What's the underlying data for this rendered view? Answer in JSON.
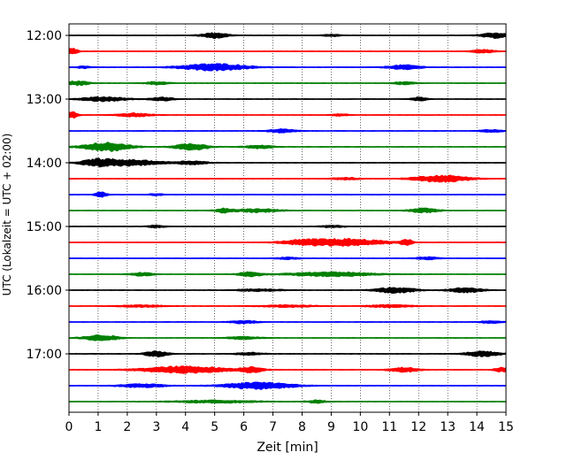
{
  "chart_data": {
    "type": "line",
    "title": "",
    "xlabel": "Zeit  [min]",
    "ylabel": "UTC (Lokalzeit = UTC + 02:00)",
    "xlim": [
      0,
      15
    ],
    "x_ticks": [
      "0",
      "1",
      "2",
      "3",
      "4",
      "5",
      "6",
      "7",
      "8",
      "9",
      "10",
      "11",
      "12",
      "13",
      "14",
      "15"
    ],
    "y_ticks": [
      "12:00",
      "13:00",
      "14:00",
      "15:00",
      "16:00",
      "17:00"
    ],
    "trace_interval_minutes": 15,
    "first_trace": "12:00",
    "trace_count": 24,
    "grid": "vertical-dotted",
    "colors": [
      "#000000",
      "#ff0000",
      "#0000ff",
      "#008000"
    ],
    "traces": [
      {
        "start": "12:00",
        "color": "#000000",
        "bursts": [
          [
            5.0,
            1.2,
            0.5
          ],
          [
            14.6,
            1.2,
            0.5
          ],
          [
            9.0,
            0.5,
            0.3
          ]
        ]
      },
      {
        "start": "12:15",
        "color": "#ff0000",
        "bursts": [
          [
            0.1,
            1.5,
            0.2
          ],
          [
            14.2,
            0.8,
            0.4
          ]
        ]
      },
      {
        "start": "12:30",
        "color": "#0000ff",
        "bursts": [
          [
            5.0,
            1.6,
            1.2
          ],
          [
            11.5,
            1.0,
            0.6
          ],
          [
            0.5,
            0.5,
            0.3
          ]
        ]
      },
      {
        "start": "12:45",
        "color": "#008000",
        "bursts": [
          [
            0.3,
            1.0,
            0.4
          ],
          [
            3.0,
            0.7,
            0.4
          ],
          [
            11.5,
            0.6,
            0.4
          ]
        ]
      },
      {
        "start": "13:00",
        "color": "#000000",
        "bursts": [
          [
            1.2,
            1.0,
            0.8
          ],
          [
            3.2,
            0.8,
            0.4
          ],
          [
            12.0,
            0.8,
            0.3
          ]
        ]
      },
      {
        "start": "13:15",
        "color": "#ff0000",
        "bursts": [
          [
            0.1,
            1.5,
            0.2
          ],
          [
            2.2,
            0.8,
            0.6
          ],
          [
            9.3,
            0.5,
            0.3
          ]
        ]
      },
      {
        "start": "13:30",
        "color": "#0000ff",
        "bursts": [
          [
            7.3,
            0.8,
            0.5
          ],
          [
            14.5,
            0.6,
            0.4
          ]
        ]
      },
      {
        "start": "13:45",
        "color": "#008000",
        "bursts": [
          [
            1.3,
            2.0,
            0.8
          ],
          [
            4.2,
            1.5,
            0.6
          ],
          [
            6.5,
            0.8,
            0.5
          ]
        ]
      },
      {
        "start": "14:00",
        "color": "#000000",
        "bursts": [
          [
            1.0,
            1.6,
            0.6
          ],
          [
            2.2,
            1.3,
            1.0
          ],
          [
            4.2,
            0.8,
            0.6
          ]
        ]
      },
      {
        "start": "14:15",
        "color": "#ff0000",
        "bursts": [
          [
            12.8,
            1.5,
            1.0
          ],
          [
            9.5,
            0.5,
            0.5
          ]
        ]
      },
      {
        "start": "14:30",
        "color": "#0000ff",
        "bursts": [
          [
            1.1,
            1.2,
            0.2
          ],
          [
            3.0,
            0.4,
            0.3
          ]
        ]
      },
      {
        "start": "14:45",
        "color": "#008000",
        "bursts": [
          [
            5.3,
            1.0,
            0.3
          ],
          [
            6.5,
            0.8,
            0.8
          ],
          [
            12.2,
            1.0,
            0.5
          ]
        ]
      },
      {
        "start": "15:00",
        "color": "#000000",
        "bursts": [
          [
            3.0,
            0.6,
            0.3
          ],
          [
            9.0,
            0.5,
            0.5
          ]
        ]
      },
      {
        "start": "15:15",
        "color": "#ff0000",
        "bursts": [
          [
            9.5,
            1.6,
            1.4
          ],
          [
            8.0,
            0.8,
            0.8
          ],
          [
            11.6,
            1.4,
            0.2
          ]
        ]
      },
      {
        "start": "15:30",
        "color": "#0000ff",
        "bursts": [
          [
            7.5,
            0.5,
            0.4
          ],
          [
            12.3,
            0.6,
            0.4
          ]
        ]
      },
      {
        "start": "15:45",
        "color": "#008000",
        "bursts": [
          [
            2.5,
            0.8,
            0.4
          ],
          [
            6.2,
            1.0,
            0.4
          ],
          [
            9.0,
            1.0,
            1.5
          ]
        ]
      },
      {
        "start": "16:00",
        "color": "#000000",
        "bursts": [
          [
            11.2,
            1.3,
            0.7
          ],
          [
            13.6,
            1.1,
            0.6
          ],
          [
            6.5,
            0.5,
            0.8
          ]
        ]
      },
      {
        "start": "16:15",
        "color": "#ff0000",
        "bursts": [
          [
            2.5,
            0.5,
            0.8
          ],
          [
            7.5,
            0.5,
            1.0
          ],
          [
            11.0,
            0.6,
            0.8
          ]
        ]
      },
      {
        "start": "16:30",
        "color": "#0000ff",
        "bursts": [
          [
            6.0,
            0.7,
            0.5
          ],
          [
            14.5,
            0.6,
            0.4
          ]
        ]
      },
      {
        "start": "16:45",
        "color": "#008000",
        "bursts": [
          [
            1.1,
            1.3,
            0.6
          ],
          [
            6.0,
            0.6,
            0.6
          ]
        ]
      },
      {
        "start": "17:00",
        "color": "#000000",
        "bursts": [
          [
            3.0,
            1.3,
            0.4
          ],
          [
            14.2,
            1.2,
            0.6
          ],
          [
            6.2,
            0.6,
            0.5
          ]
        ]
      },
      {
        "start": "17:15",
        "color": "#ff0000",
        "bursts": [
          [
            4.0,
            1.6,
            1.5
          ],
          [
            6.3,
            1.3,
            0.4
          ],
          [
            11.5,
            1.1,
            0.5
          ],
          [
            14.9,
            1.0,
            0.3
          ]
        ]
      },
      {
        "start": "17:30",
        "color": "#0000ff",
        "bursts": [
          [
            6.5,
            1.6,
            1.2
          ],
          [
            2.5,
            0.8,
            0.8
          ]
        ]
      },
      {
        "start": "17:45",
        "color": "#008000",
        "bursts": [
          [
            5.0,
            0.6,
            1.5
          ],
          [
            8.5,
            0.6,
            0.4
          ]
        ]
      }
    ]
  }
}
